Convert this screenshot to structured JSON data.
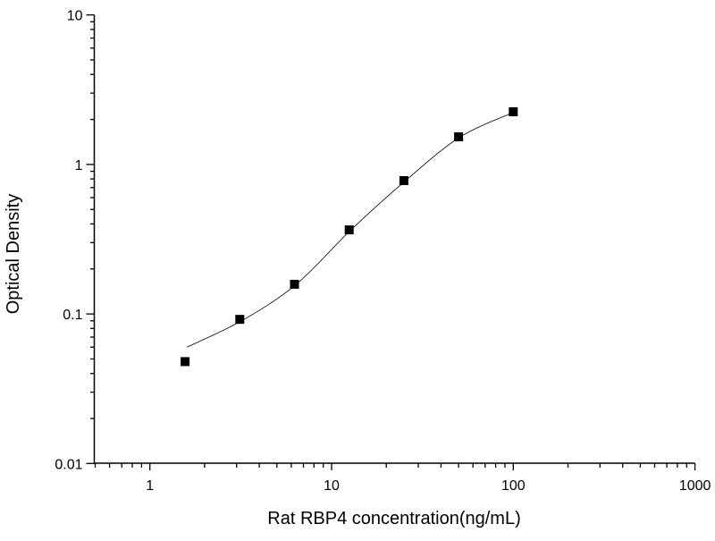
{
  "chart_data": {
    "type": "scatter",
    "title": "",
    "xlabel": "Rat RBP4 concentration(ng/mL)",
    "ylabel": "Optical Density",
    "x_scale": "log",
    "y_scale": "log",
    "xlim": [
      0.5,
      1000
    ],
    "ylim": [
      0.01,
      10
    ],
    "x_ticks": [
      "1",
      "10",
      "100",
      "1000"
    ],
    "y_ticks": [
      "0.01",
      "0.1",
      "1",
      "10"
    ],
    "grid": false,
    "legend": "none",
    "series": [
      {
        "marker": "square",
        "color": "#000000",
        "x": [
          1.5625,
          3.125,
          6.25,
          12.5,
          25,
          50,
          100
        ],
        "y": [
          0.048,
          0.092,
          0.158,
          0.365,
          0.78,
          1.53,
          2.25
        ]
      }
    ],
    "fit_curve": {
      "color": "#000000",
      "x": [
        1.5625,
        3.125,
        6.25,
        12.5,
        25,
        50,
        100
      ],
      "y": [
        0.06,
        0.09,
        0.158,
        0.365,
        0.78,
        1.53,
        2.25
      ]
    }
  }
}
